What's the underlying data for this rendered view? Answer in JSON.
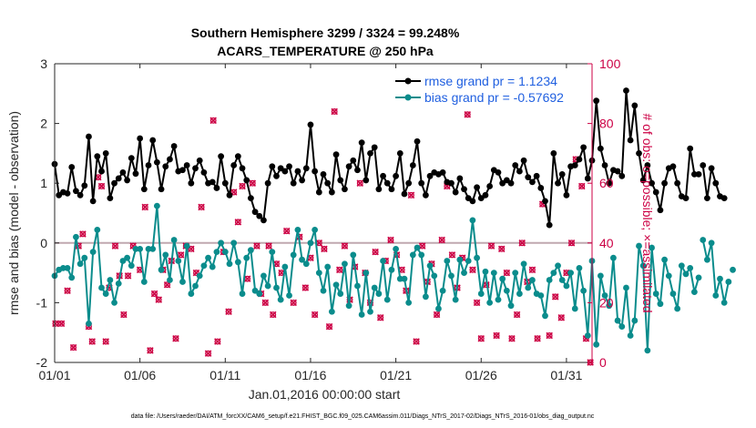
{
  "chart_data": {
    "type": "line",
    "title_line1": "Southern Hemisphere 3299 / 3324 = 99.248%",
    "title_line2": "ACARS_TEMPERATURE @ 250 hPa",
    "xlabel": "Jan.01,2016 00:00:00 start",
    "ylabel_left": "rmse and bias (model - observation)",
    "ylabel_right": "# of obs: o=possible; ×=assimilated",
    "xlim": [
      0,
      31.5
    ],
    "ylim_left": [
      -2,
      3
    ],
    "ylim_right": [
      0,
      100
    ],
    "x_ticks": [
      {
        "value": 0,
        "label": "01/01"
      },
      {
        "value": 5,
        "label": "01/06"
      },
      {
        "value": 10,
        "label": "01/11"
      },
      {
        "value": 15,
        "label": "01/16"
      },
      {
        "value": 20,
        "label": "01/21"
      },
      {
        "value": 25,
        "label": "01/26"
      },
      {
        "value": 30,
        "label": "01/31"
      }
    ],
    "y_ticks_left": [
      {
        "value": -2,
        "label": "-2"
      },
      {
        "value": -1,
        "label": "-1"
      },
      {
        "value": 0,
        "label": "0"
      },
      {
        "value": 1,
        "label": "1"
      },
      {
        "value": 2,
        "label": "2"
      },
      {
        "value": 3,
        "label": "3"
      }
    ],
    "y_ticks_right": [
      {
        "value": 0,
        "label": "0"
      },
      {
        "value": 20,
        "label": "20"
      },
      {
        "value": 40,
        "label": "40"
      },
      {
        "value": 60,
        "label": "60"
      },
      {
        "value": 80,
        "label": "80"
      },
      {
        "value": 100,
        "label": "100"
      }
    ],
    "x_step": 0.25,
    "series": [
      {
        "name": "rmse grand pr = 1.1234",
        "color": "#000000",
        "values": [
          1.32,
          0.8,
          0.85,
          0.83,
          1.27,
          0.87,
          0.8,
          0.96,
          1.78,
          0.7,
          1.45,
          1.2,
          1.5,
          0.75,
          1.0,
          1.08,
          1.18,
          1.05,
          1.42,
          1.16,
          1.75,
          0.9,
          1.3,
          1.72,
          1.35,
          0.9,
          1.28,
          1.4,
          1.62,
          1.2,
          1.22,
          1.3,
          1.0,
          1.25,
          1.38,
          1.18,
          1.0,
          1.02,
          0.92,
          1.45,
          1.0,
          0.8,
          1.3,
          1.45,
          1.25,
          1.05,
          0.75,
          0.52,
          0.45,
          0.38,
          1.0,
          1.28,
          1.12,
          1.25,
          1.2,
          1.28,
          1.0,
          1.2,
          1.05,
          1.25,
          1.98,
          1.2,
          0.85,
          1.15,
          1.0,
          0.85,
          1.48,
          1.05,
          0.9,
          1.28,
          1.38,
          1.22,
          1.68,
          1.05,
          1.5,
          1.6,
          0.9,
          1.12,
          1.0,
          0.9,
          1.12,
          1.5,
          0.82,
          1.0,
          1.3,
          1.7,
          1.0,
          0.8,
          1.12,
          1.18,
          1.15,
          1.18,
          1.02,
          1.0,
          0.85,
          1.08,
          0.9,
          0.75,
          0.7,
          0.93,
          0.75,
          0.8,
          0.95,
          1.22,
          1.18,
          1.0,
          1.05,
          1.0,
          1.3,
          1.2,
          1.38,
          1.1,
          1.02,
          1.12,
          0.92,
          0.7,
          0.3,
          1.5,
          1.0,
          1.15,
          0.8,
          1.28,
          1.3,
          1.4,
          1.6,
          1.08,
          1.38,
          2.38,
          1.58,
          1.3,
          1.0,
          1.22,
          1.2,
          1.12,
          2.55,
          1.72,
          2.3,
          1.5,
          1.05,
          1.3,
          1.0,
          0.85,
          0.55,
          1.0,
          1.25,
          1.28,
          1.0,
          0.78,
          0.75,
          1.58,
          1.15,
          1.15,
          1.3,
          0.75,
          1.25,
          1.0,
          0.78,
          0.75
        ],
        "gaps_after_index": [
          151,
          158
        ]
      },
      {
        "name": "bias grand pr = -0.57692",
        "color": "#0a8c8c",
        "values": [
          -0.55,
          -0.45,
          -0.42,
          -0.42,
          -0.58,
          0.1,
          -0.35,
          -0.25,
          -1.35,
          -0.15,
          0.22,
          -0.75,
          -0.85,
          -0.62,
          -1.0,
          -0.68,
          -0.3,
          -0.25,
          -0.38,
          -0.1,
          -0.1,
          -0.65,
          -0.1,
          -0.1,
          0.62,
          -0.45,
          -0.2,
          -0.62,
          0.05,
          -0.3,
          -0.65,
          -0.05,
          -0.85,
          -0.72,
          -0.55,
          -0.38,
          -0.25,
          -0.4,
          -0.15,
          0.0,
          -0.15,
          -0.35,
          0.0,
          -0.32,
          -0.85,
          -0.25,
          -0.12,
          -0.8,
          -0.85,
          -0.55,
          -0.72,
          -0.15,
          -0.75,
          -0.95,
          -0.4,
          -0.88,
          -0.2,
          0.22,
          -0.28,
          -0.35,
          0.0,
          0.22,
          -0.5,
          -0.8,
          -0.4,
          -1.15,
          -0.7,
          -0.85,
          -0.35,
          -1.05,
          -0.2,
          -0.72,
          -1.2,
          -0.5,
          -1.15,
          -0.75,
          -0.85,
          -0.3,
          -0.95,
          -0.45,
          -0.1,
          -0.6,
          -0.6,
          -1.0,
          -0.2,
          -0.08,
          -0.2,
          -0.9,
          -0.38,
          -0.55,
          -1.1,
          -0.8,
          -0.3,
          -0.55,
          -0.95,
          -0.28,
          -0.5,
          -0.3,
          0.38,
          -0.25,
          -0.85,
          -0.48,
          -1.0,
          -0.5,
          -0.95,
          -0.6,
          -0.8,
          -1.05,
          -0.5,
          -0.85,
          -0.35,
          -0.75,
          -0.62,
          -0.85,
          -0.88,
          -1.22,
          -0.62,
          -0.5,
          -0.38,
          -0.62,
          -0.72,
          -0.5,
          -1.1,
          -0.42,
          -0.8,
          -1.55,
          -0.3,
          -1.7,
          -0.55,
          -0.88,
          -1.05,
          -0.25,
          -1.3,
          -1.4,
          -0.75,
          -1.55,
          -1.3,
          -0.05,
          -0.38,
          -1.8,
          -0.08,
          -0.85,
          -1.02,
          -0.28,
          -0.55,
          -0.85,
          -1.1,
          -0.38,
          -0.52,
          -0.42,
          -0.82,
          -0.58,
          0.05,
          -0.28,
          0.0,
          -0.88,
          -0.6,
          -1.0,
          -0.65,
          -0.45
        ],
        "gaps_after_index": [
          151,
          158
        ]
      }
    ],
    "obs_possible": {
      "marker": "o",
      "color": "#cc0044",
      "points": [
        [
          0.05,
          13
        ],
        [
          0.4,
          13
        ],
        [
          0.75,
          24
        ],
        [
          1.1,
          5
        ],
        [
          1.4,
          39
        ],
        [
          1.65,
          43
        ],
        [
          2.0,
          12
        ],
        [
          2.2,
          7
        ],
        [
          2.55,
          62
        ],
        [
          2.75,
          59
        ],
        [
          3.0,
          7
        ],
        [
          3.2,
          25
        ],
        [
          3.55,
          39
        ],
        [
          3.8,
          29
        ],
        [
          4.05,
          16
        ],
        [
          4.3,
          29
        ],
        [
          4.6,
          39
        ],
        [
          5.0,
          31
        ],
        [
          5.3,
          52
        ],
        [
          5.6,
          4
        ],
        [
          5.85,
          23
        ],
        [
          6.1,
          21
        ],
        [
          6.35,
          31
        ],
        [
          6.6,
          26
        ],
        [
          6.85,
          34
        ],
        [
          7.1,
          8
        ],
        [
          7.4,
          36
        ],
        [
          7.7,
          39
        ],
        [
          8.0,
          38
        ],
        [
          8.3,
          30
        ],
        [
          8.6,
          52
        ],
        [
          9.0,
          3
        ],
        [
          9.3,
          81
        ],
        [
          9.55,
          7
        ],
        [
          9.9,
          37
        ],
        [
          10.2,
          17
        ],
        [
          10.5,
          57
        ],
        [
          10.75,
          47
        ],
        [
          11.0,
          59
        ],
        [
          11.3,
          28
        ],
        [
          11.6,
          60
        ],
        [
          11.85,
          39
        ],
        [
          12.1,
          23
        ],
        [
          12.35,
          20
        ],
        [
          12.55,
          39
        ],
        [
          12.8,
          16
        ],
        [
          13.0,
          33
        ],
        [
          13.3,
          30
        ],
        [
          13.6,
          44
        ],
        [
          14.0,
          20
        ],
        [
          14.35,
          42
        ],
        [
          14.7,
          25
        ],
        [
          15.0,
          35
        ],
        [
          15.25,
          16
        ],
        [
          15.5,
          40
        ],
        [
          15.8,
          38
        ],
        [
          16.1,
          12
        ],
        [
          16.4,
          84
        ],
        [
          16.7,
          31
        ],
        [
          17.0,
          39
        ],
        [
          17.3,
          21
        ],
        [
          17.6,
          32
        ],
        [
          17.9,
          60
        ],
        [
          18.2,
          30
        ],
        [
          18.5,
          20
        ],
        [
          18.8,
          37
        ],
        [
          19.1,
          15
        ],
        [
          19.4,
          34
        ],
        [
          19.7,
          41
        ],
        [
          20.05,
          36
        ],
        [
          20.35,
          31
        ],
        [
          20.6,
          24
        ],
        [
          20.9,
          56
        ],
        [
          21.2,
          7
        ],
        [
          21.55,
          39
        ],
        [
          21.85,
          27
        ],
        [
          22.1,
          33
        ],
        [
          22.4,
          16
        ],
        [
          22.7,
          41
        ],
        [
          23.0,
          59
        ],
        [
          23.3,
          36
        ],
        [
          23.6,
          25
        ],
        [
          23.9,
          35
        ],
        [
          24.2,
          83
        ],
        [
          24.5,
          31
        ],
        [
          24.75,
          20
        ],
        [
          25.0,
          8
        ],
        [
          25.3,
          26
        ],
        [
          25.6,
          39
        ],
        [
          25.9,
          9
        ],
        [
          26.2,
          38
        ],
        [
          26.5,
          30
        ],
        [
          26.8,
          8
        ],
        [
          27.1,
          16
        ],
        [
          27.4,
          40
        ],
        [
          27.7,
          27
        ],
        [
          28.0,
          31
        ],
        [
          28.3,
          8
        ],
        [
          28.6,
          53
        ],
        [
          29.0,
          9
        ],
        [
          29.35,
          22
        ],
        [
          29.7,
          15
        ],
        [
          30.0,
          30
        ],
        [
          30.3,
          40
        ],
        [
          30.55,
          68
        ],
        [
          30.9,
          59
        ],
        [
          31.15,
          8
        ],
        [
          31.4,
          0
        ]
      ]
    },
    "obs_assimilated": {
      "marker": "x",
      "color": "#cc0044",
      "points": [
        [
          0.05,
          13
        ],
        [
          0.4,
          13
        ],
        [
          0.75,
          24
        ],
        [
          1.1,
          5
        ],
        [
          1.4,
          39
        ],
        [
          1.65,
          43
        ],
        [
          2.0,
          12
        ],
        [
          2.2,
          7
        ],
        [
          2.55,
          62
        ],
        [
          2.75,
          59
        ],
        [
          3.0,
          7
        ],
        [
          3.2,
          25
        ],
        [
          3.55,
          39
        ],
        [
          3.8,
          29
        ],
        [
          4.05,
          16
        ],
        [
          4.3,
          29
        ],
        [
          4.6,
          39
        ],
        [
          5.0,
          31
        ],
        [
          5.3,
          52
        ],
        [
          5.6,
          4
        ],
        [
          5.85,
          23
        ],
        [
          6.1,
          21
        ],
        [
          6.35,
          31
        ],
        [
          6.6,
          26
        ],
        [
          6.85,
          34
        ],
        [
          7.1,
          8
        ],
        [
          7.4,
          36
        ],
        [
          7.7,
          39
        ],
        [
          8.0,
          38
        ],
        [
          8.3,
          30
        ],
        [
          8.6,
          52
        ],
        [
          9.0,
          3
        ],
        [
          9.3,
          81
        ],
        [
          9.55,
          7
        ],
        [
          9.9,
          37
        ],
        [
          10.2,
          17
        ],
        [
          10.5,
          57
        ],
        [
          10.75,
          47
        ],
        [
          11.0,
          59
        ],
        [
          11.3,
          28
        ],
        [
          11.6,
          60
        ],
        [
          11.85,
          39
        ],
        [
          12.1,
          23
        ],
        [
          12.35,
          20
        ],
        [
          12.55,
          39
        ],
        [
          12.8,
          16
        ],
        [
          13.0,
          33
        ],
        [
          13.3,
          30
        ],
        [
          13.6,
          44
        ],
        [
          14.0,
          20
        ],
        [
          14.35,
          42
        ],
        [
          14.7,
          25
        ],
        [
          15.0,
          35
        ],
        [
          15.25,
          16
        ],
        [
          15.5,
          40
        ],
        [
          15.8,
          38
        ],
        [
          16.1,
          12
        ],
        [
          16.4,
          84
        ],
        [
          16.7,
          31
        ],
        [
          17.0,
          39
        ],
        [
          17.3,
          21
        ],
        [
          17.6,
          32
        ],
        [
          17.9,
          60
        ],
        [
          18.2,
          30
        ],
        [
          18.5,
          20
        ],
        [
          18.8,
          37
        ],
        [
          19.1,
          15
        ],
        [
          19.4,
          34
        ],
        [
          19.7,
          41
        ],
        [
          20.05,
          36
        ],
        [
          20.35,
          31
        ],
        [
          20.6,
          24
        ],
        [
          20.9,
          56
        ],
        [
          21.2,
          7
        ],
        [
          21.55,
          39
        ],
        [
          21.85,
          27
        ],
        [
          22.1,
          33
        ],
        [
          22.4,
          16
        ],
        [
          22.7,
          41
        ],
        [
          23.0,
          59
        ],
        [
          23.3,
          36
        ],
        [
          23.6,
          25
        ],
        [
          23.9,
          35
        ],
        [
          24.2,
          83
        ],
        [
          24.5,
          31
        ],
        [
          24.75,
          20
        ],
        [
          25.0,
          8
        ],
        [
          25.3,
          26
        ],
        [
          25.6,
          39
        ],
        [
          25.9,
          9
        ],
        [
          26.2,
          38
        ],
        [
          26.5,
          30
        ],
        [
          26.8,
          8
        ],
        [
          27.1,
          16
        ],
        [
          27.4,
          40
        ],
        [
          27.7,
          27
        ],
        [
          28.0,
          31
        ],
        [
          28.3,
          8
        ],
        [
          28.6,
          53
        ],
        [
          29.0,
          9
        ],
        [
          29.35,
          22
        ],
        [
          29.7,
          15
        ],
        [
          30.0,
          30
        ],
        [
          30.3,
          40
        ],
        [
          30.55,
          68
        ],
        [
          30.9,
          59
        ],
        [
          31.15,
          8
        ],
        [
          31.4,
          0
        ]
      ]
    },
    "zero_line": 0,
    "legend_position": "top-right"
  },
  "footer": {
    "data_file": "data file: /Users/raeder/DAI/ATM_forcXX/CAM6_setup/f.e21.FHIST_BGC.f09_025.CAM6assim.011/Diags_NTrS_2017-02/Diags_NTrS_2016-01/obs_diag_output.nc"
  }
}
